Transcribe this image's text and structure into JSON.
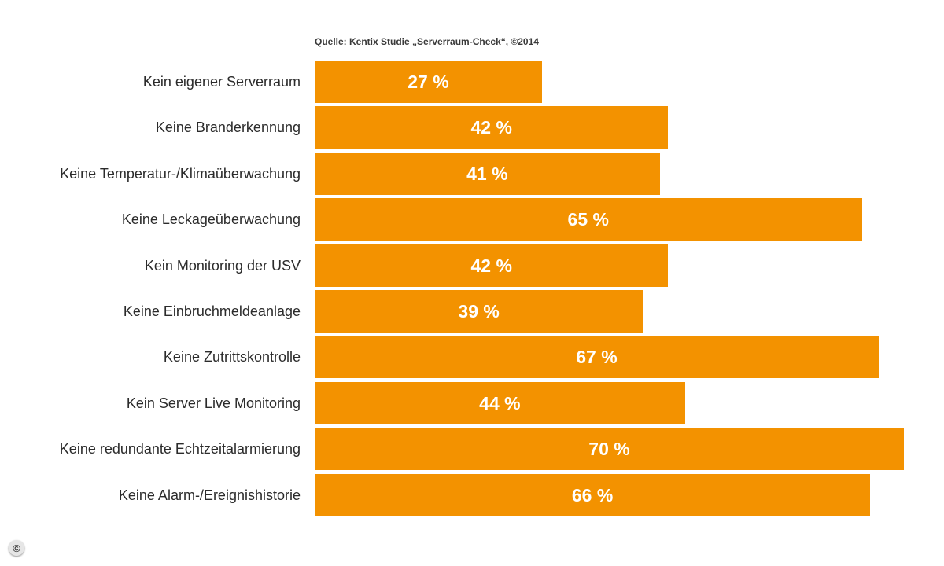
{
  "source_text": "Quelle: Kentix Studie „Serverraum-Check“, ©2014",
  "copyright_symbol": "©",
  "chart_data": {
    "type": "bar",
    "orientation": "horizontal",
    "title": "",
    "xlabel": "",
    "ylabel": "",
    "xlim": [
      0,
      100
    ],
    "unit": "%",
    "grid": false,
    "legend": "none",
    "bar_color": "#f39200",
    "categories": [
      "Kein eigener Serverraum",
      "Keine Branderkennung",
      "Keine Temperatur-/Klimaüberwachung",
      "Keine Leckageüberwachung",
      "Kein Monitoring der USV",
      "Keine Einbruchmeldeanlage",
      "Keine Zutrittskontrolle",
      "Kein Server Live Monitoring",
      "Keine redundante Echtzeitalarmierung",
      "Keine Alarm-/Ereignishistorie"
    ],
    "values": [
      27,
      42,
      41,
      65,
      42,
      39,
      67,
      44,
      70,
      66
    ],
    "value_labels": [
      "27 %",
      "42 %",
      "41 %",
      "65 %",
      "42 %",
      "39 %",
      "67 %",
      "44 %",
      "70 %",
      "66 %"
    ]
  }
}
